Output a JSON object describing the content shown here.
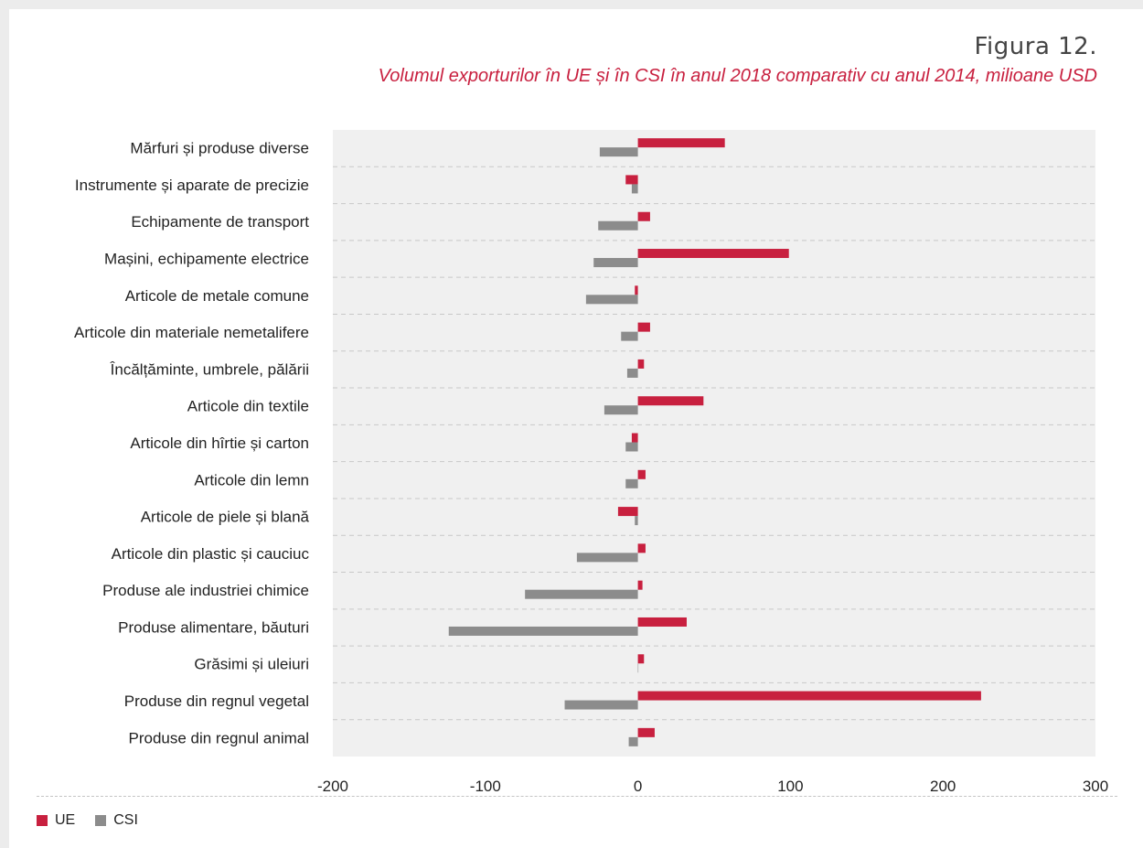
{
  "figure_label": "Figura 12.",
  "chart_data": {
    "type": "bar",
    "orientation": "horizontal",
    "title": "Volumul exporturilor în  UE și în CSI în anul 2018  comparativ cu anul 2014, milioane USD",
    "categories": [
      "Mărfuri și produse diverse",
      "Instrumente și aparate de precizie",
      "Echipamente de transport",
      "Mașini, echipamente electrice",
      "Articole de metale comune",
      "Articole din materiale nemetalifere",
      "Încălțăminte, umbrele, pălării",
      "Articole din textile",
      "Articole din hîrtie și carton",
      "Articole din lemn",
      "Articole de piele și blană",
      "Articole din plastic și cauciuc",
      "Produse ale industriei chimice",
      "Produse alimentare, băuturi",
      "Grăsimi și uleiuri",
      "Produse din regnul vegetal",
      "Produse din regnul animal"
    ],
    "series": [
      {
        "name": "UE",
        "color": "#c8203f",
        "values": [
          57,
          -8,
          8,
          99,
          -2,
          8,
          4,
          43,
          -4,
          5,
          -13,
          5,
          3,
          32,
          4,
          225,
          11
        ]
      },
      {
        "name": "CSI",
        "color": "#8c8c8c",
        "values": [
          -25,
          -4,
          -26,
          -29,
          -34,
          -11,
          -7,
          -22,
          -8,
          -8,
          -2,
          -40,
          -74,
          -124,
          0,
          -48,
          -6
        ]
      }
    ],
    "xlim": [
      -200,
      300
    ],
    "xticks": [
      -200,
      -100,
      0,
      100,
      200,
      300
    ],
    "xlabel": "",
    "ylabel": "",
    "grid": "horizontal-dashed",
    "legend": "bottom-left"
  }
}
